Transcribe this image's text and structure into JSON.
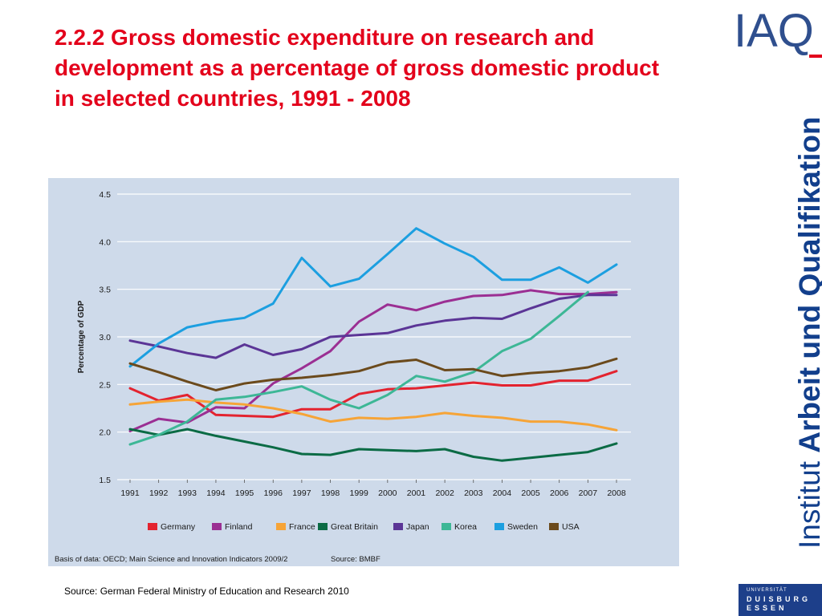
{
  "slide": {
    "title": "2.2.2 Gross domestic expenditure on research and development as a percentage of gross domestic product in selected countries, 1991 - 2008",
    "logo_text": "IAQ",
    "side_label_light": "Institut ",
    "side_label_bold": "Arbeit und Qualifikation",
    "source": "Source: German Federal Ministry of Education and Research 2010",
    "uni_logo": {
      "top": "UNIVERSITÄT",
      "line1": "DUISBURG",
      "line2": "ESSEN"
    }
  },
  "colors": {
    "title_red": "#e3001b",
    "brand_blue": "#123f8c",
    "panel_bg": "#cedaea"
  },
  "chart_data": {
    "type": "line",
    "title": "",
    "xlabel": "",
    "ylabel": "Percentage of GDP",
    "ylim": [
      1.5,
      4.5
    ],
    "yticks": [
      "1.5",
      "2.0",
      "2.5",
      "3.0",
      "3.5",
      "4.0",
      "4.5"
    ],
    "x": [
      "1991",
      "1992",
      "1993",
      "1994",
      "1995",
      "1996",
      "1997",
      "1998",
      "1999",
      "2000",
      "2001",
      "2002",
      "2003",
      "2004",
      "2005",
      "2006",
      "2007",
      "2008"
    ],
    "grid": true,
    "legend_position": "bottom",
    "basis_note": "Basis of data: OECD; Main Science and Innovation Indicators 2009/2",
    "source_note": "Source: BMBF",
    "series": [
      {
        "name": "Germany",
        "color": "#e3232f",
        "values": [
          2.46,
          2.33,
          2.39,
          2.18,
          2.17,
          2.16,
          2.24,
          2.24,
          2.4,
          2.45,
          2.46,
          2.49,
          2.52,
          2.49,
          2.49,
          2.54,
          2.54,
          2.64
        ]
      },
      {
        "name": "Finland",
        "color": "#9b2f93",
        "values": [
          2.01,
          2.14,
          2.1,
          2.26,
          2.25,
          2.51,
          2.67,
          2.85,
          3.16,
          3.34,
          3.28,
          3.37,
          3.43,
          3.44,
          3.49,
          3.45,
          3.45,
          3.47
        ]
      },
      {
        "name": "France",
        "color": "#f6a437",
        "values": [
          2.29,
          2.32,
          2.34,
          2.31,
          2.29,
          2.25,
          2.19,
          2.11,
          2.15,
          2.14,
          2.16,
          2.2,
          2.17,
          2.15,
          2.11,
          2.11,
          2.08,
          2.02
        ]
      },
      {
        "name": "Great Britain",
        "color": "#0b6b45",
        "values": [
          2.03,
          1.97,
          2.03,
          1.96,
          1.9,
          1.84,
          1.77,
          1.76,
          1.82,
          1.81,
          1.8,
          1.82,
          1.74,
          1.7,
          1.73,
          1.76,
          1.79,
          1.88
        ]
      },
      {
        "name": "Japan",
        "color": "#5b3596",
        "values": [
          2.96,
          2.9,
          2.83,
          2.78,
          2.92,
          2.81,
          2.87,
          3.0,
          3.02,
          3.04,
          3.12,
          3.17,
          3.2,
          3.19,
          3.3,
          3.4,
          3.44,
          3.44
        ]
      },
      {
        "name": "Korea",
        "color": "#3db796",
        "values": [
          1.87,
          1.97,
          2.11,
          2.34,
          2.37,
          2.42,
          2.48,
          2.34,
          2.25,
          2.39,
          2.59,
          2.53,
          2.63,
          2.85,
          2.98,
          3.22,
          3.47,
          null
        ]
      },
      {
        "name": "Sweden",
        "color": "#1c9fe0",
        "values": [
          2.69,
          2.93,
          3.1,
          3.16,
          3.2,
          3.35,
          3.83,
          3.53,
          3.61,
          3.87,
          4.14,
          3.98,
          3.84,
          3.6,
          3.6,
          3.73,
          3.57,
          3.76
        ]
      },
      {
        "name": "USA",
        "color": "#6b4a1c",
        "values": [
          2.72,
          2.63,
          2.53,
          2.44,
          2.51,
          2.55,
          2.57,
          2.6,
          2.64,
          2.73,
          2.76,
          2.65,
          2.66,
          2.59,
          2.62,
          2.64,
          2.68,
          2.77
        ]
      }
    ]
  }
}
